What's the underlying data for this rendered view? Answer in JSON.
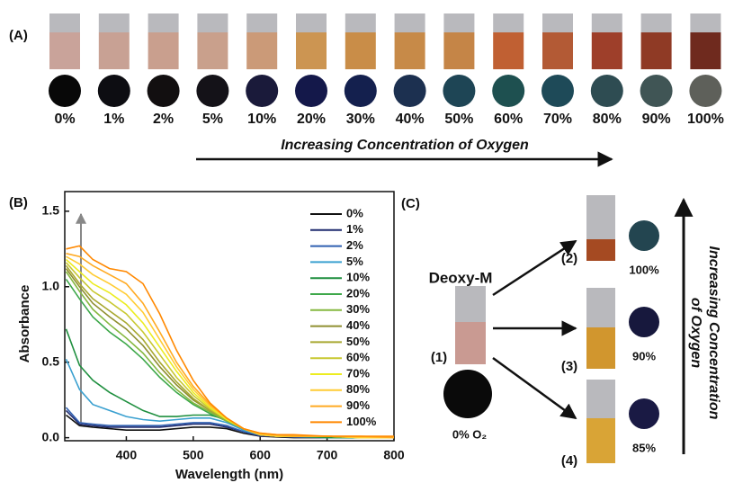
{
  "panel_a": {
    "label": "(A)",
    "arrow_text": "Increasing Concentration of Oxygen",
    "samples": [
      {
        "label": "0%",
        "liquid": "#c9a39a",
        "dot": "#080808"
      },
      {
        "label": "1%",
        "liquid": "#c8a194",
        "dot": "#0d0d12"
      },
      {
        "label": "2%",
        "liquid": "#c99f8e",
        "dot": "#120f10"
      },
      {
        "label": "5%",
        "liquid": "#c9a08c",
        "dot": "#141218"
      },
      {
        "label": "10%",
        "liquid": "#cb9a78",
        "dot": "#1a1a3a"
      },
      {
        "label": "20%",
        "liquid": "#cc9552",
        "dot": "#14184a"
      },
      {
        "label": "30%",
        "liquid": "#c98d48",
        "dot": "#14204e"
      },
      {
        "label": "40%",
        "liquid": "#c78a48",
        "dot": "#1c3050"
      },
      {
        "label": "50%",
        "liquid": "#c58547",
        "dot": "#1e4555"
      },
      {
        "label": "60%",
        "liquid": "#c06033",
        "dot": "#1e5050"
      },
      {
        "label": "70%",
        "liquid": "#b35a35",
        "dot": "#1e4a58"
      },
      {
        "label": "80%",
        "liquid": "#9e3f2a",
        "dot": "#2e4c52"
      },
      {
        "label": "90%",
        "liquid": "#8f3a25",
        "dot": "#405555"
      },
      {
        "label": "100%",
        "liquid": "#6f2a1e",
        "dot": "#5e605a"
      }
    ]
  },
  "chart_data": {
    "type": "line",
    "panel_label": "(B)",
    "x_label": "Wavelength (nm)",
    "y_label": "Absorbance",
    "x": [
      310,
      330,
      350,
      375,
      400,
      425,
      450,
      475,
      500,
      525,
      550,
      575,
      600,
      625,
      650,
      700,
      750,
      800
    ],
    "xlim": [
      308,
      800
    ],
    "xticks": [
      400,
      500,
      600,
      700,
      800
    ],
    "ylim": [
      -0.02,
      1.63
    ],
    "yticks": [
      {
        "value": 0,
        "label": "0.0"
      },
      {
        "value": 0.5,
        "label": "0.5"
      },
      {
        "value": 1,
        "label": "1.0"
      },
      {
        "value": 1.5,
        "label": "1.5"
      }
    ],
    "series": [
      {
        "name": "0%",
        "color": "#111111",
        "values": [
          0.15,
          0.08,
          0.07,
          0.06,
          0.05,
          0.05,
          0.05,
          0.06,
          0.07,
          0.07,
          0.06,
          0.03,
          0.01,
          0.005,
          0,
          0,
          0,
          0
        ]
      },
      {
        "name": "1%",
        "color": "#1f2a6e",
        "values": [
          0.18,
          0.09,
          0.08,
          0.07,
          0.07,
          0.07,
          0.07,
          0.08,
          0.09,
          0.09,
          0.07,
          0.04,
          0.01,
          0.01,
          0.005,
          0,
          0,
          0
        ]
      },
      {
        "name": "2%",
        "color": "#2f5fb0",
        "values": [
          0.2,
          0.1,
          0.09,
          0.08,
          0.08,
          0.08,
          0.08,
          0.09,
          0.1,
          0.1,
          0.08,
          0.04,
          0.015,
          0.01,
          0.005,
          0,
          0,
          0
        ]
      },
      {
        "name": "5%",
        "color": "#3aa0d0",
        "values": [
          0.52,
          0.32,
          0.22,
          0.18,
          0.14,
          0.12,
          0.11,
          0.12,
          0.13,
          0.13,
          0.1,
          0.05,
          0.02,
          0.01,
          0.01,
          0,
          0,
          0
        ]
      },
      {
        "name": "10%",
        "color": "#1f8f3f",
        "values": [
          0.72,
          0.48,
          0.38,
          0.3,
          0.24,
          0.18,
          0.14,
          0.14,
          0.15,
          0.15,
          0.12,
          0.06,
          0.02,
          0.01,
          0.01,
          0,
          0,
          0
        ]
      },
      {
        "name": "20%",
        "color": "#3ea84a",
        "values": [
          1.05,
          0.92,
          0.8,
          0.7,
          0.62,
          0.52,
          0.4,
          0.3,
          0.22,
          0.16,
          0.11,
          0.06,
          0.02,
          0.01,
          0.01,
          0.01,
          0,
          0
        ]
      },
      {
        "name": "30%",
        "color": "#86b840",
        "values": [
          1.1,
          0.97,
          0.85,
          0.75,
          0.66,
          0.56,
          0.43,
          0.32,
          0.23,
          0.17,
          0.11,
          0.06,
          0.02,
          0.01,
          0.01,
          0.01,
          0,
          0
        ]
      },
      {
        "name": "40%",
        "color": "#8f8f30",
        "values": [
          1.12,
          1.0,
          0.89,
          0.8,
          0.72,
          0.61,
          0.47,
          0.35,
          0.25,
          0.18,
          0.12,
          0.06,
          0.02,
          0.01,
          0.01,
          0.01,
          0,
          0
        ]
      },
      {
        "name": "50%",
        "color": "#a8a830",
        "values": [
          1.14,
          1.02,
          0.92,
          0.84,
          0.76,
          0.65,
          0.5,
          0.37,
          0.26,
          0.18,
          0.12,
          0.06,
          0.02,
          0.01,
          0.01,
          0.01,
          0,
          0
        ]
      },
      {
        "name": "60%",
        "color": "#c8c830",
        "values": [
          1.16,
          1.06,
          0.97,
          0.9,
          0.82,
          0.7,
          0.55,
          0.4,
          0.28,
          0.19,
          0.12,
          0.06,
          0.02,
          0.01,
          0.01,
          0.01,
          0,
          0
        ]
      },
      {
        "name": "70%",
        "color": "#ecec20",
        "values": [
          1.18,
          1.1,
          1.02,
          0.96,
          0.88,
          0.76,
          0.6,
          0.44,
          0.3,
          0.2,
          0.12,
          0.06,
          0.02,
          0.01,
          0.01,
          0.01,
          0,
          0
        ]
      },
      {
        "name": "80%",
        "color": "#ffcc33",
        "values": [
          1.2,
          1.15,
          1.08,
          1.02,
          0.95,
          0.83,
          0.65,
          0.47,
          0.32,
          0.21,
          0.13,
          0.06,
          0.02,
          0.01,
          0.01,
          0.01,
          0,
          0
        ]
      },
      {
        "name": "90%",
        "color": "#ffaa22",
        "values": [
          1.22,
          1.2,
          1.14,
          1.08,
          1.02,
          0.89,
          0.7,
          0.5,
          0.34,
          0.22,
          0.13,
          0.06,
          0.03,
          0.02,
          0.01,
          0.01,
          0.01,
          0
        ]
      },
      {
        "name": "100%",
        "color": "#ff8800",
        "values": [
          1.25,
          1.27,
          1.18,
          1.12,
          1.1,
          1.02,
          0.82,
          0.58,
          0.38,
          0.23,
          0.13,
          0.06,
          0.03,
          0.02,
          0.02,
          0.01,
          0.01,
          0.01
        ]
      }
    ]
  },
  "panel_c": {
    "label": "(C)",
    "start": {
      "name": "Deoxy-M",
      "number": "(1)",
      "dot_label": "0% O₂",
      "liquid": "#c99a92",
      "dot": "#0a0a0a"
    },
    "results": [
      {
        "number": "(2)",
        "dot_label": "100%",
        "liquid": "#a54a22",
        "dot": "#234550"
      },
      {
        "number": "(3)",
        "dot_label": "90%",
        "liquid": "#d1962e",
        "dot": "#17183d"
      },
      {
        "number": "(4)",
        "dot_label": "85%",
        "liquid": "#d9a436",
        "dot": "#1a1a44"
      }
    ],
    "arrow_text": [
      "Increasing Concentration",
      "of Oxygen"
    ]
  }
}
